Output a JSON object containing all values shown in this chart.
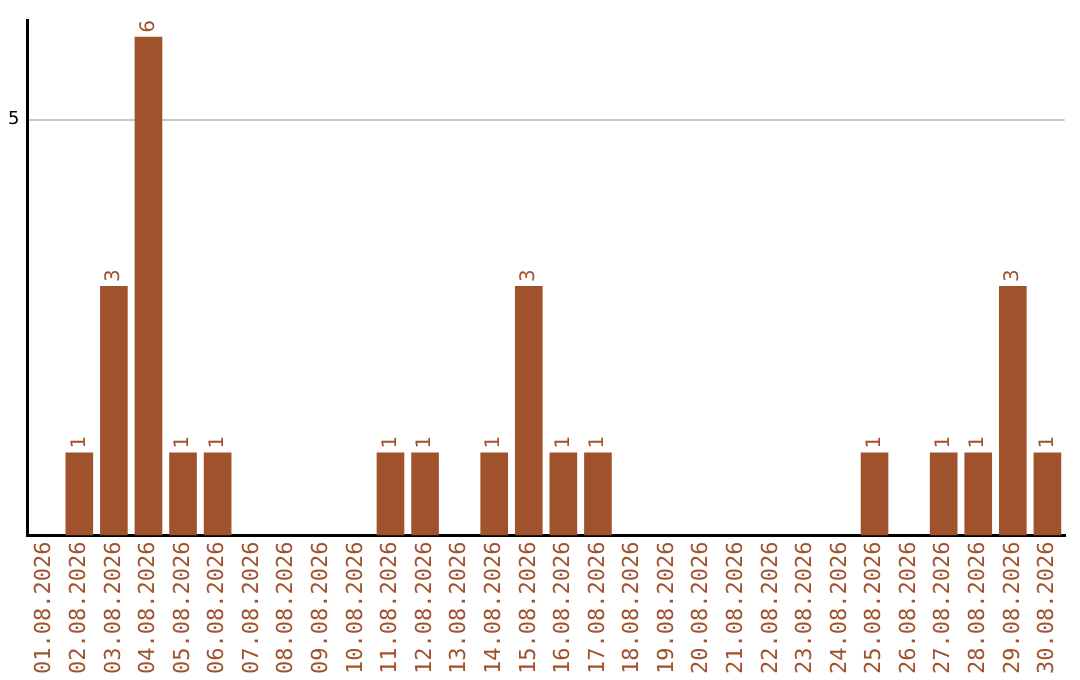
{
  "chart_data": {
    "type": "bar",
    "categories": [
      "01.08.2026",
      "02.08.2026",
      "03.08.2026",
      "04.08.2026",
      "05.08.2026",
      "06.08.2026",
      "07.08.2026",
      "08.08.2026",
      "09.08.2026",
      "10.08.2026",
      "11.08.2026",
      "12.08.2026",
      "13.08.2026",
      "14.08.2026",
      "15.08.2026",
      "16.08.2026",
      "17.08.2026",
      "18.08.2026",
      "19.08.2026",
      "20.08.2026",
      "21.08.2026",
      "22.08.2026",
      "23.08.2026",
      "24.08.2026",
      "25.08.2026",
      "26.08.2026",
      "27.08.2026",
      "28.08.2026",
      "29.08.2026",
      "30.08.2026"
    ],
    "values": [
      0,
      1,
      3,
      6,
      1,
      1,
      0,
      0,
      0,
      0,
      1,
      1,
      0,
      1,
      3,
      1,
      1,
      0,
      0,
      0,
      0,
      0,
      0,
      0,
      1,
      0,
      1,
      1,
      3,
      1
    ],
    "value_labels": [
      null,
      "1",
      "3",
      "6",
      "1",
      "1",
      null,
      null,
      null,
      null,
      "1",
      "1",
      null,
      "1",
      "3",
      "1",
      "1",
      null,
      null,
      null,
      null,
      null,
      null,
      null,
      "1",
      null,
      "1",
      "1",
      "3",
      "1"
    ],
    "color": "#a0522d",
    "ylim": [
      0,
      6.2
    ],
    "yticks": [
      5
    ],
    "grid": "y",
    "legend": false
  }
}
